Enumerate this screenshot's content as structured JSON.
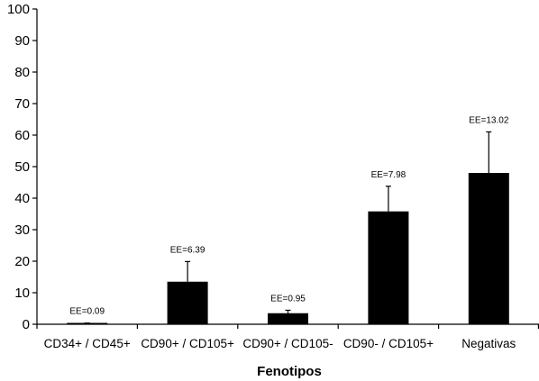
{
  "chart_data": {
    "type": "bar",
    "categories": [
      "CD34+ / CD45+",
      "CD90+ / CD105+",
      "CD90+ / CD105-",
      "CD90- / CD105+",
      "Negativas"
    ],
    "values": [
      0.3,
      13.5,
      3.5,
      35.8,
      48.0
    ],
    "error_plus": [
      0.09,
      6.39,
      0.95,
      7.98,
      13.02
    ],
    "error_labels": [
      "EE=0.09",
      "EE=6.39",
      "EE=0.95",
      "EE=7.98",
      "EE=13.02"
    ],
    "yticks": [
      "0",
      "10",
      "20",
      "30",
      "40",
      "50",
      "60",
      "70",
      "80",
      "90",
      "100"
    ],
    "title": "",
    "xlabel": "Fenotipos",
    "ylabel": "",
    "ylim": [
      0,
      100
    ],
    "grid": false,
    "legend": "none",
    "bar_color": "#000000"
  }
}
